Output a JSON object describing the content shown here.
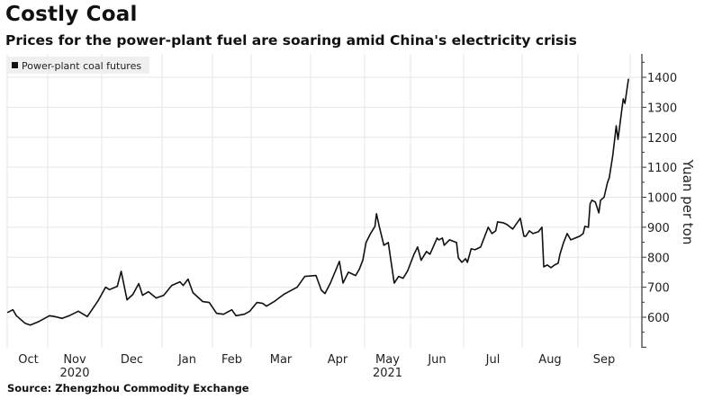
{
  "title": "Costly Coal",
  "subtitle": "Prices for the power-plant fuel are soaring amid China's electricity crisis",
  "source": "Source: Zhengzhou Commodity Exchange",
  "chart_data": {
    "type": "line",
    "title": "Costly Coal",
    "subtitle": "Prices for the power-plant fuel are soaring amid China's electricity crisis",
    "xlabel": "",
    "ylabel": "Yuan per ton",
    "ylim": [
      500,
      1450
    ],
    "yticks": [
      600,
      700,
      800,
      900,
      1000,
      1100,
      1200,
      1300,
      1400
    ],
    "y_axis_side": "right",
    "grid": true,
    "legend_position": "top-left",
    "x_tick_labels": [
      "Oct",
      "Nov",
      "Dec",
      "Jan",
      "Feb",
      "Mar",
      "Apr",
      "May",
      "Jun",
      "Jul",
      "Aug",
      "Sep"
    ],
    "x_year_labels": [
      {
        "under": "Nov",
        "label": "2020"
      },
      {
        "under": "May",
        "label": "2021"
      }
    ],
    "line_color": "#111111",
    "series": [
      {
        "name": "Power-plant coal futures",
        "points": [
          [
            "2020-10-09",
            616
          ],
          [
            "2020-10-12",
            625
          ],
          [
            "2020-10-14",
            605
          ],
          [
            "2020-10-19",
            580
          ],
          [
            "2020-10-22",
            574
          ],
          [
            "2020-10-27",
            586
          ],
          [
            "2020-11-02",
            605
          ],
          [
            "2020-11-05",
            602
          ],
          [
            "2020-11-09",
            596
          ],
          [
            "2020-11-13",
            605
          ],
          [
            "2020-11-18",
            620
          ],
          [
            "2020-11-23",
            602
          ],
          [
            "2020-11-29",
            655
          ],
          [
            "2020-12-03",
            700
          ],
          [
            "2020-12-05",
            692
          ],
          [
            "2020-12-09",
            703
          ],
          [
            "2020-12-11",
            753
          ],
          [
            "2020-12-14",
            658
          ],
          [
            "2020-12-17",
            676
          ],
          [
            "2020-12-20",
            712
          ],
          [
            "2020-12-22",
            673
          ],
          [
            "2020-12-25",
            685
          ],
          [
            "2020-12-29",
            664
          ],
          [
            "2021-01-02",
            673
          ],
          [
            "2021-01-07",
            706
          ],
          [
            "2021-01-12",
            718
          ],
          [
            "2021-01-14",
            706
          ],
          [
            "2021-01-17",
            727
          ],
          [
            "2021-01-20",
            682
          ],
          [
            "2021-01-26",
            652
          ],
          [
            "2021-01-30",
            649
          ],
          [
            "2021-02-04",
            613
          ],
          [
            "2021-02-09",
            610
          ],
          [
            "2021-02-15",
            625
          ],
          [
            "2021-02-18",
            605
          ],
          [
            "2021-02-24",
            610
          ],
          [
            "2021-02-28",
            620
          ],
          [
            "2021-03-04",
            649
          ],
          [
            "2021-03-07",
            646
          ],
          [
            "2021-03-09",
            637
          ],
          [
            "2021-03-13",
            652
          ],
          [
            "2021-03-18",
            676
          ],
          [
            "2021-03-25",
            700
          ],
          [
            "2021-03-29",
            736
          ],
          [
            "2021-04-04",
            739
          ],
          [
            "2021-04-07",
            690
          ],
          [
            "2021-04-09",
            679
          ],
          [
            "2021-04-12",
            714
          ],
          [
            "2021-04-17",
            786
          ],
          [
            "2021-04-19",
            714
          ],
          [
            "2021-04-22",
            750
          ],
          [
            "2021-04-26",
            739
          ],
          [
            "2021-04-28",
            759
          ],
          [
            "2021-04-30",
            790
          ],
          [
            "2021-05-02",
            849
          ],
          [
            "2021-05-05",
            879
          ],
          [
            "2021-05-08",
            903
          ],
          [
            "2021-05-09",
            945
          ],
          [
            "2021-05-11",
            900
          ],
          [
            "2021-05-14",
            840
          ],
          [
            "2021-05-17",
            849
          ],
          [
            "2021-05-21",
            714
          ],
          [
            "2021-05-24",
            736
          ],
          [
            "2021-05-27",
            730
          ],
          [
            "2021-05-30",
            754
          ],
          [
            "2021-06-03",
            810
          ],
          [
            "2021-06-05",
            834
          ],
          [
            "2021-06-07",
            790
          ],
          [
            "2021-06-10",
            819
          ],
          [
            "2021-06-12",
            810
          ],
          [
            "2021-06-16",
            864
          ],
          [
            "2021-06-17",
            858
          ],
          [
            "2021-06-19",
            864
          ],
          [
            "2021-06-20",
            840
          ],
          [
            "2021-06-23",
            858
          ],
          [
            "2021-06-27",
            849
          ],
          [
            "2021-06-28",
            798
          ],
          [
            "2021-06-30",
            783
          ],
          [
            "2021-07-02",
            795
          ],
          [
            "2021-07-03",
            783
          ],
          [
            "2021-07-05",
            828
          ],
          [
            "2021-07-07",
            825
          ],
          [
            "2021-07-10",
            834
          ],
          [
            "2021-07-14",
            900
          ],
          [
            "2021-07-16",
            879
          ],
          [
            "2021-07-18",
            888
          ],
          [
            "2021-07-19",
            918
          ],
          [
            "2021-07-22",
            915
          ],
          [
            "2021-07-24",
            909
          ],
          [
            "2021-07-27",
            894
          ],
          [
            "2021-07-31",
            930
          ],
          [
            "2021-08-02",
            870
          ],
          [
            "2021-08-03",
            870
          ],
          [
            "2021-08-05",
            888
          ],
          [
            "2021-08-07",
            879
          ],
          [
            "2021-08-10",
            885
          ],
          [
            "2021-08-12",
            900
          ],
          [
            "2021-08-13",
            768
          ],
          [
            "2021-08-15",
            774
          ],
          [
            "2021-08-17",
            765
          ],
          [
            "2021-08-19",
            774
          ],
          [
            "2021-08-21",
            780
          ],
          [
            "2021-08-22",
            810
          ],
          [
            "2021-08-24",
            849
          ],
          [
            "2021-08-26",
            879
          ],
          [
            "2021-08-28",
            858
          ],
          [
            "2021-09-02",
            870
          ],
          [
            "2021-09-04",
            879
          ],
          [
            "2021-09-05",
            903
          ],
          [
            "2021-09-07",
            900
          ],
          [
            "2021-09-08",
            978
          ],
          [
            "2021-09-09",
            990
          ],
          [
            "2021-09-11",
            984
          ],
          [
            "2021-09-13",
            948
          ],
          [
            "2021-09-14",
            990
          ],
          [
            "2021-09-16",
            1000
          ],
          [
            "2021-09-18",
            1050
          ],
          [
            "2021-09-19",
            1065
          ],
          [
            "2021-09-21",
            1140
          ],
          [
            "2021-09-23",
            1238
          ],
          [
            "2021-09-24",
            1193
          ],
          [
            "2021-09-25",
            1238
          ],
          [
            "2021-09-27",
            1328
          ],
          [
            "2021-09-28",
            1313
          ],
          [
            "2021-09-30",
            1394
          ]
        ]
      }
    ]
  }
}
